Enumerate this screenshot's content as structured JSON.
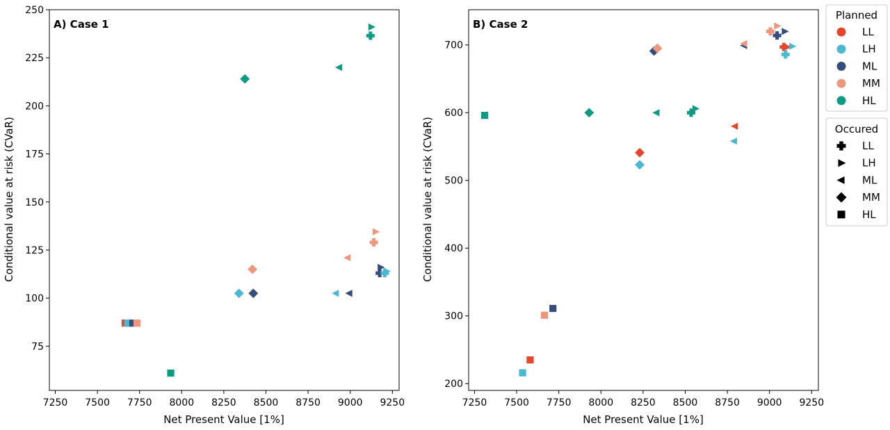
{
  "colors": {
    "LL": "#e5472d",
    "LH": "#4bb8d2",
    "ML": "#354c7c",
    "MM": "#ef977c",
    "HL": "#0f9a84"
  },
  "legend_planned": {
    "title": "Planned",
    "items": [
      {
        "key": "LL",
        "label": "LL"
      },
      {
        "key": "LH",
        "label": "LH"
      },
      {
        "key": "ML",
        "label": "ML"
      },
      {
        "key": "MM",
        "label": "MM"
      },
      {
        "key": "HL",
        "label": "HL"
      }
    ]
  },
  "legend_occured": {
    "title": "Occured",
    "items": [
      {
        "key": "LL",
        "label": "LL",
        "marker": "plus"
      },
      {
        "key": "LH",
        "label": "LH",
        "marker": "triangle-right"
      },
      {
        "key": "ML",
        "label": "ML",
        "marker": "triangle-left"
      },
      {
        "key": "MM",
        "label": "MM",
        "marker": "diamond"
      },
      {
        "key": "HL",
        "label": "HL",
        "marker": "square"
      }
    ]
  },
  "marker_map": {
    "LL": "plus",
    "LH": "triangle-right",
    "ML": "triangle-left",
    "MM": "diamond",
    "HL": "square"
  },
  "chart_data": [
    {
      "type": "scatter",
      "title": "A) Case 1",
      "xlabel": "Net Present Value [1%]",
      "ylabel": "Conditional value at risk (CVaR)",
      "xlim": [
        7215,
        9290
      ],
      "ylim": [
        52,
        250
      ],
      "xticks": [
        7250,
        7500,
        7750,
        8000,
        8250,
        8500,
        8750,
        9000,
        9250
      ],
      "yticks": [
        75,
        100,
        125,
        150,
        175,
        200,
        225,
        250
      ],
      "points": [
        {
          "planned": "LL",
          "occurred": "HL",
          "x": 7665,
          "y": 87
        },
        {
          "planned": "LH",
          "occurred": "HL",
          "x": 7680,
          "y": 87
        },
        {
          "planned": "ML",
          "occurred": "HL",
          "x": 7710,
          "y": 87
        },
        {
          "planned": "MM",
          "occurred": "HL",
          "x": 7735,
          "y": 87
        },
        {
          "planned": "HL",
          "occurred": "HL",
          "x": 7935,
          "y": 61
        },
        {
          "planned": "LH",
          "occurred": "MM",
          "x": 8340,
          "y": 102.5
        },
        {
          "planned": "ML",
          "occurred": "MM",
          "x": 8425,
          "y": 102.5
        },
        {
          "planned": "MM",
          "occurred": "MM",
          "x": 8420,
          "y": 115
        },
        {
          "planned": "HL",
          "occurred": "MM",
          "x": 8375,
          "y": 214
        },
        {
          "planned": "LH",
          "occurred": "ML",
          "x": 8915,
          "y": 102.5
        },
        {
          "planned": "ML",
          "occurred": "ML",
          "x": 8995,
          "y": 102.5
        },
        {
          "planned": "MM",
          "occurred": "ML",
          "x": 8985,
          "y": 121
        },
        {
          "planned": "HL",
          "occurred": "ML",
          "x": 8935,
          "y": 220
        },
        {
          "planned": "ML",
          "occurred": "LH",
          "x": 9180,
          "y": 116
        },
        {
          "planned": "MM",
          "occurred": "LH",
          "x": 9150,
          "y": 134.5
        },
        {
          "planned": "HL",
          "occurred": "LH",
          "x": 9125,
          "y": 241
        },
        {
          "planned": "LH",
          "occurred": "LH",
          "x": 9215,
          "y": 114
        },
        {
          "planned": "ML",
          "occurred": "LL",
          "x": 9175,
          "y": 113
        },
        {
          "planned": "LH",
          "occurred": "LL",
          "x": 9205,
          "y": 113
        },
        {
          "planned": "MM",
          "occurred": "LL",
          "x": 9140,
          "y": 129
        },
        {
          "planned": "HL",
          "occurred": "LL",
          "x": 9120,
          "y": 236.5
        }
      ]
    },
    {
      "type": "scatter",
      "title": "B) Case 2",
      "xlabel": "Net Present Value [1%]",
      "ylabel": "Conditional value at risk (CVaR)",
      "xlim": [
        7215,
        9290
      ],
      "ylim": [
        190,
        752
      ],
      "xticks": [
        7250,
        7500,
        7750,
        8000,
        8250,
        8500,
        8750,
        9000,
        9250
      ],
      "yticks": [
        200,
        300,
        400,
        500,
        600,
        700
      ],
      "points": [
        {
          "planned": "LH",
          "occurred": "HL",
          "x": 7535,
          "y": 216
        },
        {
          "planned": "LL",
          "occurred": "HL",
          "x": 7580,
          "y": 235
        },
        {
          "planned": "MM",
          "occurred": "HL",
          "x": 7665,
          "y": 301
        },
        {
          "planned": "ML",
          "occurred": "HL",
          "x": 7715,
          "y": 311
        },
        {
          "planned": "HL",
          "occurred": "HL",
          "x": 7310,
          "y": 596
        },
        {
          "planned": "HL",
          "occurred": "MM",
          "x": 7930,
          "y": 600
        },
        {
          "planned": "LL",
          "occurred": "MM",
          "x": 8230,
          "y": 541
        },
        {
          "planned": "LH",
          "occurred": "MM",
          "x": 8230,
          "y": 523
        },
        {
          "planned": "ML",
          "occurred": "MM",
          "x": 8315,
          "y": 691
        },
        {
          "planned": "MM",
          "occurred": "MM",
          "x": 8335,
          "y": 695
        },
        {
          "planned": "HL",
          "occurred": "ML",
          "x": 8330,
          "y": 600
        },
        {
          "planned": "LL",
          "occurred": "ML",
          "x": 8795,
          "y": 580
        },
        {
          "planned": "LH",
          "occurred": "ML",
          "x": 8790,
          "y": 558
        },
        {
          "planned": "ML",
          "occurred": "ML",
          "x": 8850,
          "y": 699
        },
        {
          "planned": "MM",
          "occurred": "ML",
          "x": 8850,
          "y": 702
        },
        {
          "planned": "HL",
          "occurred": "LL",
          "x": 8535,
          "y": 600
        },
        {
          "planned": "HL",
          "occurred": "LH",
          "x": 8560,
          "y": 606
        },
        {
          "planned": "MM",
          "occurred": "LL",
          "x": 9005,
          "y": 720
        },
        {
          "planned": "MM",
          "occurred": "LH",
          "x": 9045,
          "y": 728
        },
        {
          "planned": "ML",
          "occurred": "LL",
          "x": 9045,
          "y": 714
        },
        {
          "planned": "ML",
          "occurred": "LH",
          "x": 9090,
          "y": 720
        },
        {
          "planned": "LL",
          "occurred": "LL",
          "x": 9085,
          "y": 697
        },
        {
          "planned": "LL",
          "occurred": "LH",
          "x": 9105,
          "y": 697
        },
        {
          "planned": "LH",
          "occurred": "LL",
          "x": 9095,
          "y": 686
        },
        {
          "planned": "LH",
          "occurred": "LH",
          "x": 9135,
          "y": 698
        }
      ]
    }
  ]
}
